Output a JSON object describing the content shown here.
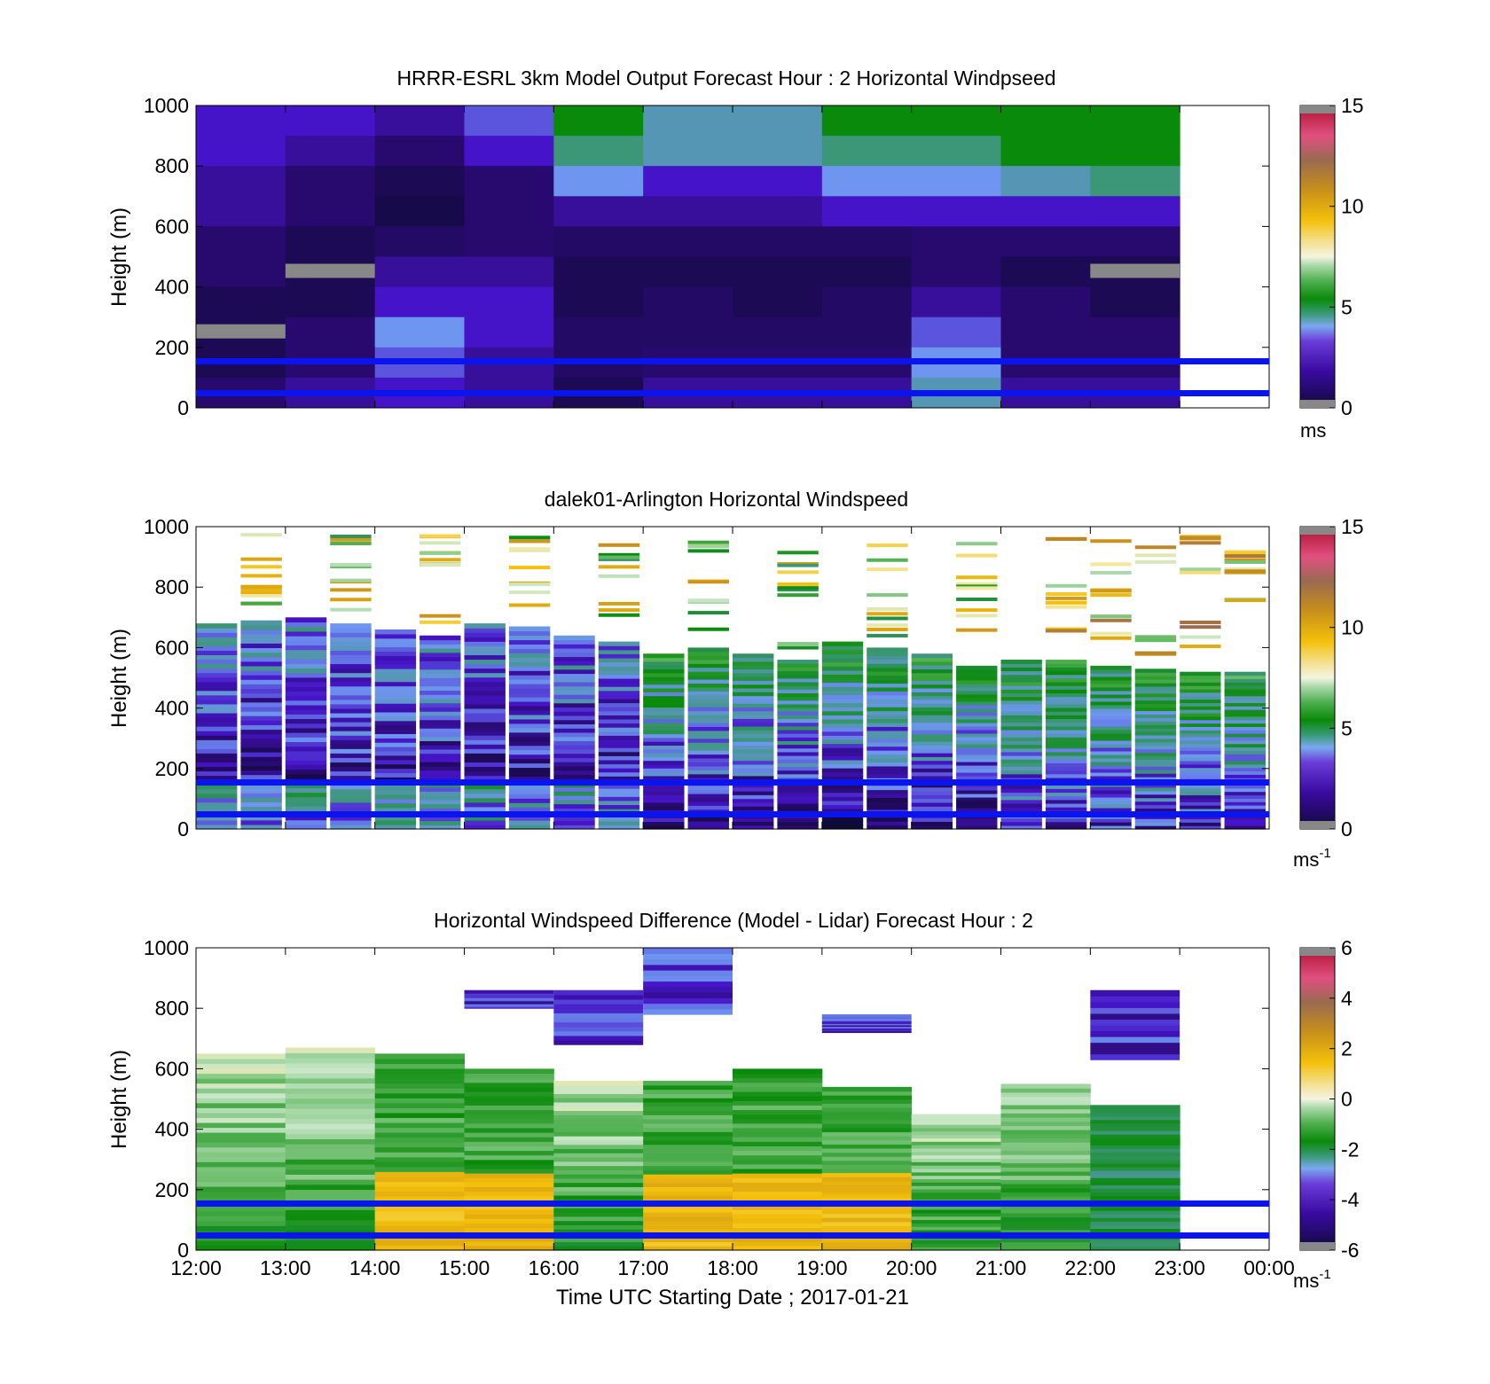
{
  "chart_data": [
    {
      "type": "heatmap",
      "title": "HRRR-ESRL 3km Model Output   Forecast Hour : 2 Horizontal Windpseed",
      "ylabel": "Height (m)",
      "ylim": [
        0,
        1000
      ],
      "yticks": [
        "0",
        "200",
        "400",
        "600",
        "800",
        "1000"
      ],
      "colorbar": {
        "range": [
          0,
          15
        ],
        "ticks": [
          "0",
          "5",
          "10",
          "15"
        ],
        "unit": "ms",
        "unit_sup": ""
      },
      "field_values_ms": [
        [
          2,
          2,
          1.5,
          2.5,
          5,
          3.5,
          3.5,
          5,
          5,
          5,
          5,
          null
        ],
        [
          2,
          1.5,
          1,
          2,
          4,
          3.5,
          3.5,
          4,
          4,
          5,
          5,
          null
        ],
        [
          1.5,
          1,
          0.5,
          1,
          3,
          2,
          2,
          3,
          3,
          3.5,
          4,
          null
        ],
        [
          1.5,
          1,
          0.3,
          1,
          1.5,
          1.5,
          1.5,
          2,
          2,
          2,
          2,
          null
        ],
        [
          1,
          0.5,
          0.8,
          1,
          0.8,
          0.8,
          0.8,
          0.8,
          1,
          1,
          1,
          null
        ],
        [
          1,
          0.5,
          1.5,
          1.5,
          0.5,
          0.5,
          0.5,
          0.5,
          1,
          0.5,
          0.5,
          null
        ],
        [
          0.5,
          0.5,
          2,
          2,
          0.5,
          0.8,
          0.5,
          0.8,
          1.5,
          1,
          0.5,
          null
        ],
        [
          0.5,
          1,
          3,
          2,
          0.8,
          0.8,
          0.8,
          0.8,
          2.5,
          1,
          1,
          null
        ],
        [
          0.5,
          1,
          2.5,
          1.5,
          0.8,
          1,
          1,
          1,
          3,
          1,
          1,
          null
        ],
        [
          1,
          1.5,
          2,
          1.5,
          0.5,
          1.5,
          1.5,
          1.5,
          3.5,
          1.5,
          1.5,
          null
        ]
      ],
      "reference_lines_m": [
        150,
        50
      ],
      "reference_line_color": "#0a14ee"
    },
    {
      "type": "heatmap",
      "title": "dalek01-Arlington  Horizontal Windspeed",
      "ylabel": "Height (m)",
      "ylim": [
        0,
        1000
      ],
      "yticks": [
        "0",
        "200",
        "400",
        "600",
        "800",
        "1000"
      ],
      "colorbar": {
        "range": [
          0,
          15
        ],
        "ticks": [
          "0",
          "5",
          "10",
          "15"
        ],
        "unit": "ms",
        "unit_sup": "-1"
      },
      "reference_lines_m": [
        150,
        50
      ],
      "reference_line_color": "#0a14ee"
    },
    {
      "type": "heatmap",
      "title": "Horizontal Windspeed Difference (Model - Lidar) Forecast Hour : 2",
      "xlabel": "Time UTC  Starting Date ; 2017-01-21",
      "ylabel": "Height (m)",
      "ylim": [
        0,
        1000
      ],
      "yticks": [
        "0",
        "200",
        "400",
        "600",
        "800",
        "1000"
      ],
      "xticks": [
        "12:00",
        "13:00",
        "14:00",
        "15:00",
        "16:00",
        "17:00",
        "18:00",
        "19:00",
        "20:00",
        "21:00",
        "22:00",
        "23:00",
        "00:00"
      ],
      "colorbar": {
        "range": [
          -6,
          6
        ],
        "ticks": [
          "-6",
          "-4",
          "-2",
          "0",
          "2",
          "4",
          "6"
        ],
        "unit": "ms",
        "unit_sup": "-1"
      },
      "reference_lines_m": [
        150,
        50
      ],
      "reference_line_color": "#0a14ee"
    }
  ]
}
